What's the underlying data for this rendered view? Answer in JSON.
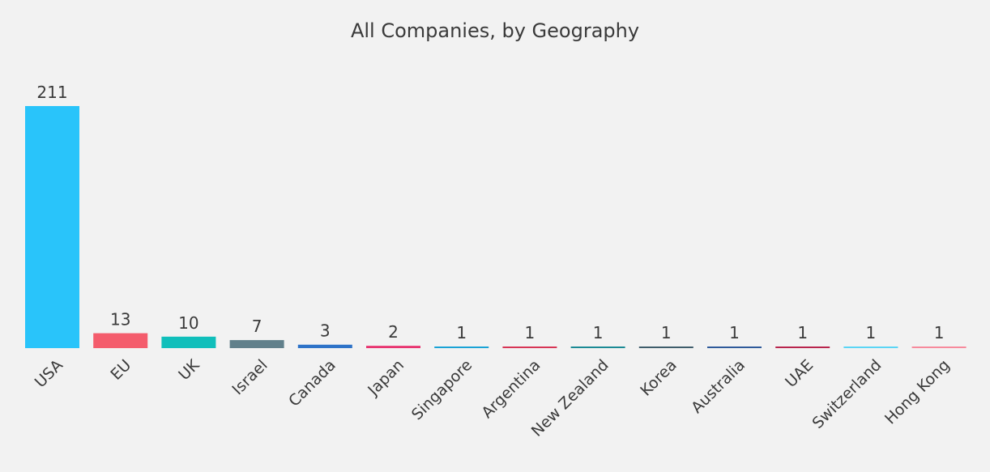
{
  "chart_data": {
    "type": "bar",
    "title": "All Companies, by Geography",
    "xlabel": "",
    "ylabel": "",
    "categories": [
      "USA",
      "EU",
      "UK",
      "Israel",
      "Canada",
      "Japan",
      "Singapore",
      "Argentina",
      "New Zealand",
      "Korea",
      "Australia",
      "UAE",
      "Switzerland",
      "Hong Kong"
    ],
    "values": [
      211,
      13,
      10,
      7,
      3,
      2,
      1,
      1,
      1,
      1,
      1,
      1,
      1,
      1
    ],
    "ylim": [
      0,
      211
    ],
    "grid": false,
    "legend": "none",
    "show_data_labels": true,
    "colors": [
      "#29c4fa",
      "#f45c6c",
      "#10bfbb",
      "#61808b",
      "#2e73c8",
      "#e8336f",
      "#1aa3d6",
      "#d73555",
      "#1b8a95",
      "#3f5d6b",
      "#2e5a9a",
      "#b8254d",
      "#5bd5f5",
      "#f78a9c"
    ]
  }
}
